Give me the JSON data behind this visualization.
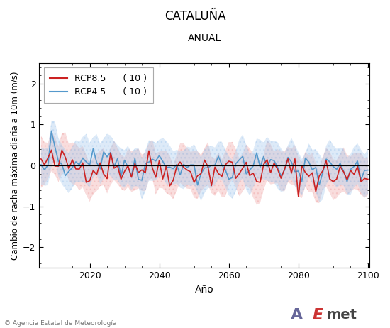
{
  "title": "CATALUÑA",
  "subtitle": "ANUAL",
  "xlabel": "Año",
  "ylabel": "Cambio de racha máxima diaria a 10m (m/s)",
  "year_start": 2006,
  "year_end": 2100,
  "ylim": [
    -2.5,
    2.5
  ],
  "yticks": [
    -2,
    -1,
    0,
    1,
    2
  ],
  "xticks": [
    2020,
    2040,
    2060,
    2080,
    2100
  ],
  "rcp85_color": "#cc2222",
  "rcp45_color": "#5599cc",
  "rcp85_fill_color": "#f0aaaa",
  "rcp45_fill_color": "#aaccee",
  "legend_rcp85": "RCP8.5",
  "legend_rcp45": "RCP4.5",
  "legend_n85": "( 10 )",
  "legend_n45": "( 10 )",
  "background_color": "#ffffff",
  "plot_bg_color": "#ffffff",
  "copyright_text": "© Agencia Estatal de Meteorología",
  "seed": 42
}
